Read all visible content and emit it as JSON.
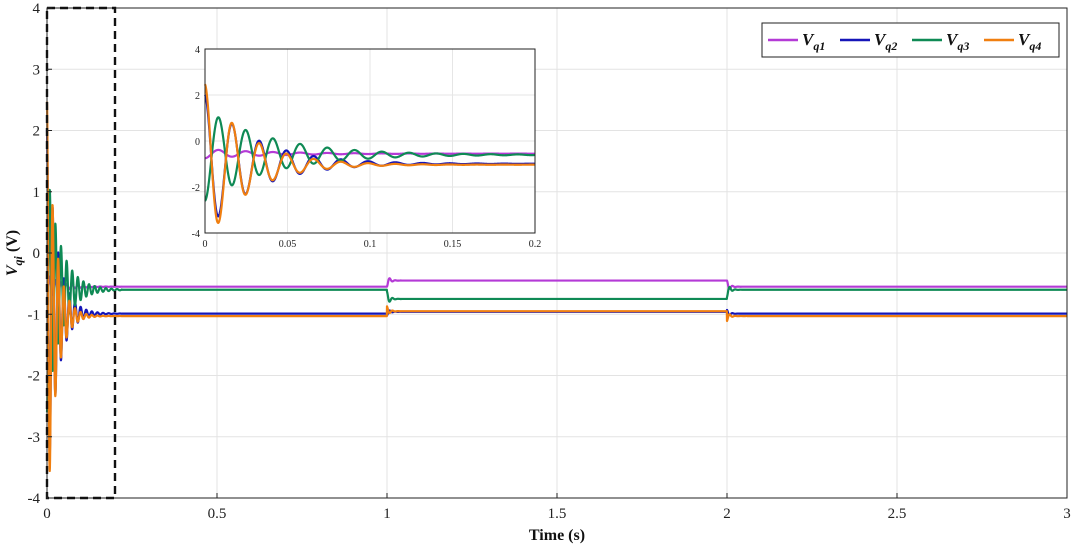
{
  "chart_data": {
    "type": "line",
    "xlabel": "Time (s)",
    "ylabel": {
      "main": "V",
      "sub": "qi",
      "unit": " (V)"
    },
    "xlim": [
      0,
      3
    ],
    "ylim": [
      -4,
      4
    ],
    "xticks": [
      0,
      0.5,
      1,
      1.5,
      2,
      2.5,
      3
    ],
    "xtick_labels": [
      "0",
      "0.5",
      "1",
      "1.5",
      "2",
      "2.5",
      "3"
    ],
    "yticks": [
      -4,
      -3,
      -2,
      -1,
      0,
      1,
      2,
      3,
      4
    ],
    "ytick_labels": [
      "-4",
      "-3",
      "-2",
      "-1",
      "0",
      "1",
      "2",
      "3",
      "4"
    ],
    "grid": true,
    "legend_position": "top-right",
    "legend_orientation": "horizontal",
    "highlight_box": {
      "x": [
        0,
        0.2
      ],
      "y": [
        -4,
        4
      ],
      "style": "dashed"
    },
    "series": [
      {
        "name": "Vq1",
        "label_main": "V",
        "label_sub": "q1",
        "color": "#b43ad6",
        "steady": [
          [
            0,
            -0.55
          ],
          [
            1,
            -0.45
          ],
          [
            2,
            -0.55
          ]
        ],
        "transients": [
          {
            "t0": 0,
            "amp": 0.2,
            "sign": -1,
            "omega": 3.7,
            "tau": 0.04,
            "duration": 0.22
          },
          {
            "t0": 1,
            "amp": 0.1,
            "sign": -1,
            "omega": 3.7,
            "tau": 0.008,
            "duration": 0.06
          },
          {
            "t0": 2,
            "amp": 0.1,
            "sign": 1,
            "omega": 3.7,
            "tau": 0.008,
            "duration": 0.06
          }
        ]
      },
      {
        "name": "Vq2",
        "label_main": "V",
        "label_sub": "q2",
        "color": "#1515b8",
        "steady": [
          [
            0,
            -0.99
          ],
          [
            1,
            -0.96
          ],
          [
            2,
            -0.99
          ]
        ],
        "transients": [
          {
            "t0": 0,
            "amp": 3.0,
            "sign": 1,
            "omega": 3.7,
            "tau": 0.03,
            "duration": 0.22
          },
          {
            "t0": 1,
            "amp": 0.06,
            "sign": -1,
            "omega": 3.7,
            "tau": 0.008,
            "duration": 0.06
          },
          {
            "t0": 2,
            "amp": 0.06,
            "sign": 1,
            "omega": 3.7,
            "tau": 0.008,
            "duration": 0.06
          }
        ]
      },
      {
        "name": "Vq3",
        "label_main": "V",
        "label_sub": "q3",
        "color": "#0f8a55",
        "steady": [
          [
            0,
            -0.6
          ],
          [
            1,
            -0.75
          ],
          [
            2,
            -0.6
          ]
        ],
        "transients": [
          {
            "t0": 0,
            "amp": 2.0,
            "sign": -1,
            "omega": 3.7,
            "tau": 0.04,
            "duration": 0.22
          },
          {
            "t0": 1,
            "amp": 0.12,
            "sign": 1,
            "omega": 3.7,
            "tau": 0.008,
            "duration": 0.06
          },
          {
            "t0": 2,
            "amp": 0.12,
            "sign": -1,
            "omega": 3.7,
            "tau": 0.008,
            "duration": 0.06
          }
        ]
      },
      {
        "name": "Vq4",
        "label_main": "V",
        "label_sub": "q4",
        "color": "#f07f10",
        "steady": [
          [
            0,
            -1.03
          ],
          [
            1,
            -0.95
          ],
          [
            2,
            -1.03
          ]
        ],
        "transients": [
          {
            "t0": 0,
            "amp": 3.5,
            "sign": 1,
            "omega": 3.7,
            "tau": 0.025,
            "duration": 0.22
          },
          {
            "t0": 1,
            "amp": 0.08,
            "sign": 1,
            "omega": 3.7,
            "tau": 0.008,
            "duration": 0.06
          },
          {
            "t0": 2,
            "amp": 0.08,
            "sign": -1,
            "omega": 3.7,
            "tau": 0.008,
            "duration": 0.06
          }
        ]
      }
    ],
    "inset": {
      "xlim": [
        0,
        0.2
      ],
      "ylim": [
        -4,
        4
      ],
      "xticks": [
        0,
        0.05,
        0.1,
        0.15,
        0.2
      ],
      "xtick_labels": [
        "0",
        "0.05",
        "0.1",
        "0.15",
        "0.2"
      ],
      "yticks": [
        -4,
        -2,
        0,
        2,
        4
      ],
      "ytick_labels": [
        "-4",
        "-2",
        "0",
        "2",
        "4"
      ],
      "grid": true
    }
  }
}
